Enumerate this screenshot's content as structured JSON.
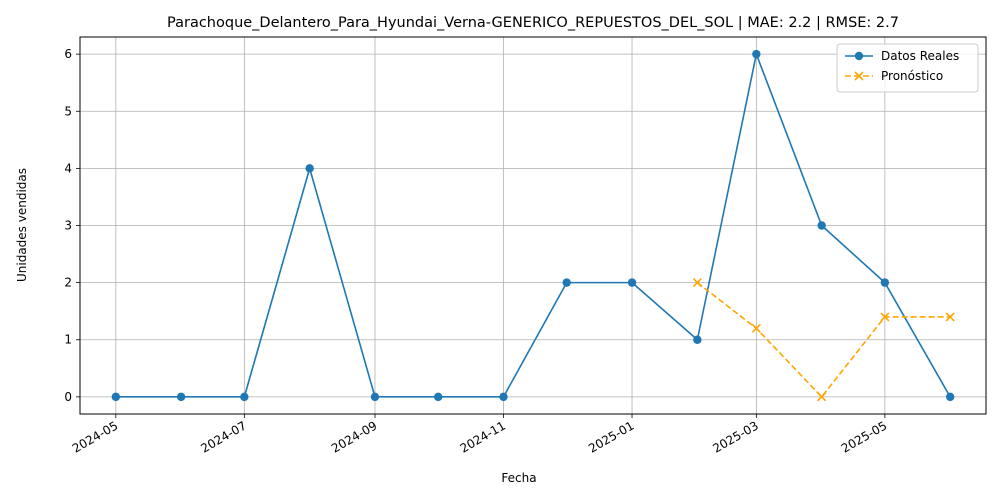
{
  "chart_data": {
    "type": "line",
    "title": "Parachoque_Delantero_Para_Hyundai_Verna-GENERICO_REPUESTOS_DEL_SOL | MAE: 2.2 | RMSE: 2.7",
    "xlabel": "Fecha",
    "ylabel": "Unidades vendidas",
    "x_ticks": [
      "2024-05",
      "2024-07",
      "2024-09",
      "2024-11",
      "2025-01",
      "2025-03",
      "2025-05"
    ],
    "y_ticks": [
      0,
      1,
      2,
      3,
      4,
      5,
      6
    ],
    "ylim": [
      -0.3,
      6.3
    ],
    "xlim": [
      "2024-04-14",
      "2025-06-18"
    ],
    "grid": true,
    "legend_position": "top-right",
    "series": [
      {
        "name": "Datos Reales",
        "color": "#1f77b4",
        "style": "solid",
        "marker": "circle",
        "x": [
          "2024-05-01",
          "2024-06-01",
          "2024-07-01",
          "2024-08-01",
          "2024-09-01",
          "2024-10-01",
          "2024-11-01",
          "2024-12-01",
          "2025-01-01",
          "2025-02-01",
          "2025-03-01",
          "2025-04-01",
          "2025-05-01",
          "2025-06-01"
        ],
        "values": [
          0,
          0,
          0,
          4,
          0,
          0,
          0,
          2,
          2,
          1,
          6,
          3,
          2,
          0
        ]
      },
      {
        "name": "Pronóstico",
        "color": "#ffa500",
        "style": "dashed",
        "marker": "x",
        "x": [
          "2025-02-01",
          "2025-03-01",
          "2025-04-01",
          "2025-05-01",
          "2025-06-01"
        ],
        "values": [
          2.0,
          1.2,
          0.0,
          1.4,
          1.4
        ]
      }
    ]
  }
}
